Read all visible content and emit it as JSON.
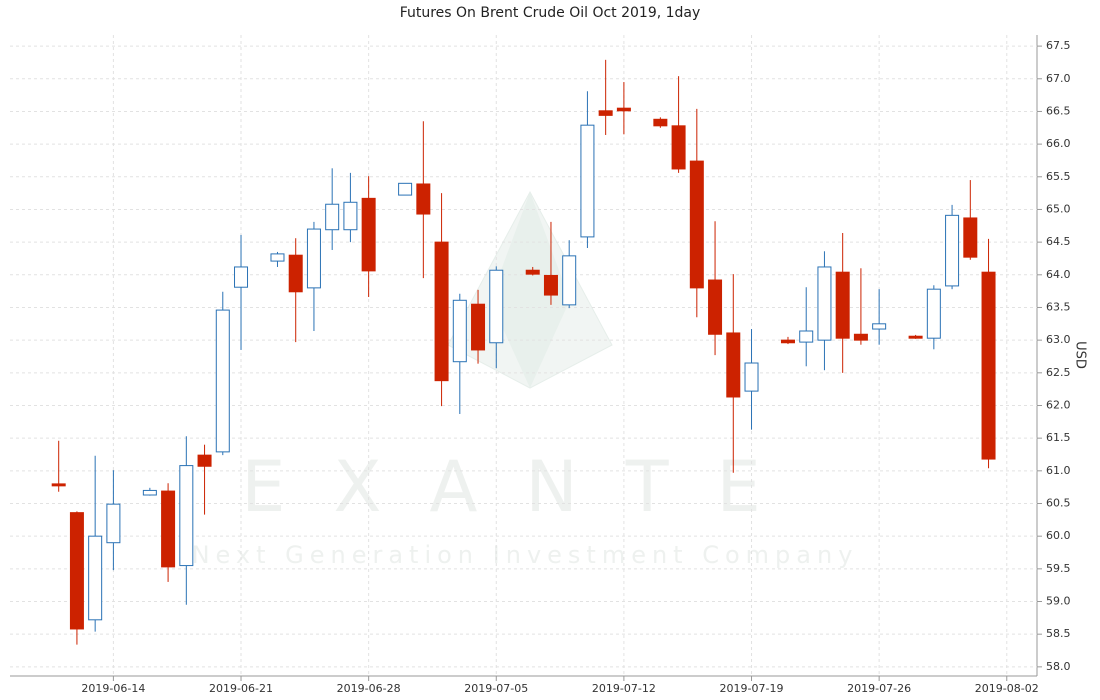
{
  "chart_data": {
    "type": "candlestick",
    "title": "Futures On Brent Crude Oil Oct 2019, 1day",
    "y_label": "USD",
    "watermark": "EXANTE",
    "watermark_subtitle": "Next Generation Investment Company",
    "x": [
      "2019-06-11",
      "2019-06-12",
      "2019-06-13",
      "2019-06-14",
      "2019-06-16",
      "2019-06-17",
      "2019-06-18",
      "2019-06-19",
      "2019-06-20",
      "2019-06-21",
      "2019-06-23",
      "2019-06-24",
      "2019-06-25",
      "2019-06-26",
      "2019-06-27",
      "2019-06-28",
      "2019-06-30",
      "2019-07-01",
      "2019-07-02",
      "2019-07-03",
      "2019-07-04",
      "2019-07-05",
      "2019-07-07",
      "2019-07-08",
      "2019-07-09",
      "2019-07-10",
      "2019-07-11",
      "2019-07-12",
      "2019-07-14",
      "2019-07-15",
      "2019-07-16",
      "2019-07-17",
      "2019-07-18",
      "2019-07-19",
      "2019-07-21",
      "2019-07-22",
      "2019-07-23",
      "2019-07-24",
      "2019-07-25",
      "2019-07-26",
      "2019-07-28",
      "2019-07-29",
      "2019-07-30",
      "2019-07-31",
      "2019-08-01"
    ],
    "open": [
      60.8,
      60.36,
      58.72,
      59.9,
      60.63,
      60.69,
      59.55,
      61.24,
      61.29,
      63.81,
      64.21,
      64.3,
      63.8,
      64.69,
      64.69,
      65.17,
      65.22,
      65.39,
      64.5,
      62.67,
      63.55,
      62.96,
      64.07,
      63.99,
      63.54,
      64.58,
      66.51,
      66.55,
      66.38,
      66.28,
      65.74,
      63.92,
      63.11,
      62.22,
      63.0,
      62.97,
      63.0,
      64.04,
      63.09,
      63.17,
      63.06,
      63.03,
      63.83,
      64.87,
      64.04
    ],
    "high": [
      61.46,
      60.38,
      61.23,
      61.01,
      60.74,
      60.81,
      61.53,
      61.4,
      63.74,
      64.61,
      64.35,
      64.56,
      64.81,
      65.63,
      65.56,
      65.51,
      65.4,
      66.35,
      65.25,
      63.71,
      63.77,
      64.13,
      64.12,
      64.81,
      64.53,
      66.81,
      67.29,
      66.95,
      66.41,
      67.04,
      66.54,
      64.82,
      64.01,
      63.17,
      63.05,
      63.81,
      64.36,
      64.64,
      64.1,
      63.78,
      63.08,
      63.84,
      65.07,
      65.45,
      64.55
    ],
    "low": [
      60.68,
      58.34,
      58.54,
      59.48,
      60.62,
      59.3,
      58.95,
      60.33,
      61.24,
      62.85,
      64.12,
      62.97,
      63.14,
      64.38,
      64.5,
      63.66,
      65.22,
      63.95,
      61.99,
      61.87,
      62.64,
      62.57,
      63.99,
      63.54,
      63.49,
      64.41,
      66.14,
      66.15,
      66.25,
      65.56,
      63.35,
      62.77,
      60.97,
      61.63,
      62.94,
      62.6,
      62.54,
      62.5,
      62.93,
      62.93,
      63.02,
      62.86,
      63.78,
      64.23,
      61.04
    ],
    "close": [
      60.77,
      58.58,
      60.0,
      60.49,
      60.7,
      59.53,
      61.08,
      61.07,
      63.46,
      64.12,
      64.32,
      63.74,
      64.7,
      65.08,
      65.11,
      64.06,
      65.4,
      64.93,
      62.38,
      63.61,
      62.85,
      64.07,
      64.01,
      63.69,
      64.29,
      66.29,
      66.44,
      66.51,
      66.28,
      65.62,
      63.8,
      63.09,
      62.13,
      62.65,
      62.96,
      63.14,
      64.12,
      63.03,
      63.0,
      63.25,
      63.03,
      63.78,
      64.91,
      64.27,
      61.18
    ],
    "up_color": "#2a72b5",
    "down_color": "#cc2200",
    "xlim": [
      "2019-06-08",
      "2019-08-03"
    ],
    "xticks": [
      "2019-06-14",
      "2019-06-21",
      "2019-06-28",
      "2019-07-05",
      "2019-07-12",
      "2019-07-19",
      "2019-07-26",
      "2019-08-02"
    ],
    "ylim": [
      57.86,
      67.67
    ],
    "yticks": [
      {
        "value": 58,
        "label": "58.0"
      },
      58.5,
      {
        "value": 59,
        "label": "59.0"
      },
      59.5,
      {
        "value": 60,
        "label": "60.0"
      },
      60.5,
      {
        "value": 61,
        "label": "61.0"
      },
      61.5,
      {
        "value": 62,
        "label": "62.0"
      },
      62.5,
      {
        "value": 63,
        "label": "63.0"
      },
      63.5,
      {
        "value": 64,
        "label": "64.0"
      },
      64.5,
      {
        "value": 65,
        "label": "65.0"
      },
      65.5,
      {
        "value": 66,
        "label": "66.0"
      },
      66.5,
      {
        "value": 67,
        "label": "67.0"
      },
      67.5
    ],
    "grid": true
  }
}
